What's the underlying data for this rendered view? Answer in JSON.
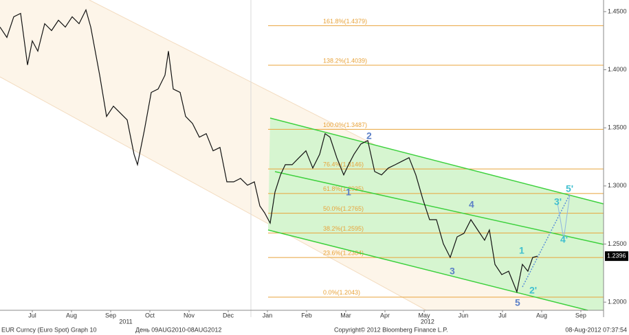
{
  "chart_data": {
    "type": "line",
    "x": [
      5.675,
      5.85,
      6.026,
      6.201,
      6.377,
      6.5,
      6.64,
      6.815,
      6.991,
      7.166,
      7.342,
      7.517,
      7.693,
      7.868,
      7.991,
      8.219,
      8.394,
      8.57,
      8.745,
      8.921,
      9.096,
      9.184,
      9.359,
      9.535,
      9.71,
      9.886,
      9.973,
      10.096,
      10.272,
      10.412,
      10.587,
      10.763,
      10.938,
      11.114,
      11.289,
      11.465,
      11.64,
      11.815,
      11.991,
      12.166,
      12.307,
      12.429,
      12.57,
      12.693,
      12.833,
      12.956,
      13.131,
      13.307,
      13.482,
      13.658,
      13.833,
      13.973,
      14.096,
      14.271,
      14.447,
      14.57,
      14.71,
      14.886,
      15.061,
      15.237,
      15.412,
      15.587,
      15.763,
      15.938,
      16.114,
      16.289,
      16.465,
      16.64,
      16.815,
      16.991,
      17.166,
      17.342,
      17.517,
      17.693,
      17.868,
      18.043,
      18.166,
      18.307,
      18.482,
      18.657,
      18.868,
      19.008,
      19.149,
      19.271,
      19.394
    ],
    "series": [
      {
        "name": "EUR Curncy",
        "color": "#111111",
        "values": [
          1.4367,
          1.4278,
          1.4456,
          1.4485,
          1.4041,
          1.4248,
          1.416,
          1.4396,
          1.4337,
          1.4426,
          1.4367,
          1.4456,
          1.4396,
          1.4515,
          1.4367,
          1.3953,
          1.3598,
          1.3686,
          1.3627,
          1.3568,
          1.3272,
          1.3183,
          1.3479,
          1.3805,
          1.3834,
          1.3953,
          1.416,
          1.3834,
          1.3805,
          1.3598,
          1.3538,
          1.342,
          1.345,
          1.3302,
          1.3331,
          1.3035,
          1.3035,
          1.3065,
          1.3006,
          1.3035,
          1.2828,
          1.2769,
          1.268,
          1.2947,
          1.3095,
          1.3183,
          1.3183,
          1.3243,
          1.3302,
          1.3154,
          1.3272,
          1.345,
          1.342,
          1.3243,
          1.3095,
          1.3183,
          1.3272,
          1.3361,
          1.339,
          1.3124,
          1.3095,
          1.3154,
          1.3183,
          1.3213,
          1.3243,
          1.3095,
          1.2888,
          1.271,
          1.271,
          1.2503,
          1.2385,
          1.2562,
          1.2592,
          1.271,
          1.2621,
          1.2533,
          1.2621,
          1.2325,
          1.2237,
          1.2266,
          1.2089,
          1.2325,
          1.2266,
          1.2385,
          1.2396
        ]
      }
    ],
    "xlim": [
      5.675,
      21.08
    ],
    "xticks": [
      {
        "value": 6.5,
        "label": "Jul"
      },
      {
        "value": 7.5,
        "label": "Aug"
      },
      {
        "value": 8.5,
        "label": "Sep"
      },
      {
        "value": 9.5,
        "label": "Oct"
      },
      {
        "value": 10.5,
        "label": "Nov"
      },
      {
        "value": 11.5,
        "label": "Dec"
      },
      {
        "value": 12.5,
        "label": "Jan"
      },
      {
        "value": 13.5,
        "label": "Feb"
      },
      {
        "value": 14.5,
        "label": "Mar"
      },
      {
        "value": 15.5,
        "label": "Apr"
      },
      {
        "value": 16.5,
        "label": "May"
      },
      {
        "value": 17.5,
        "label": "Jun"
      },
      {
        "value": 18.5,
        "label": "Jul"
      },
      {
        "value": 19.5,
        "label": "Aug"
      },
      {
        "value": 20.5,
        "label": "Sep"
      }
    ],
    "year_labels": [
      {
        "value": 8.886,
        "label": "2011"
      },
      {
        "value": 16.587,
        "label": "2012"
      }
    ],
    "ylim": [
      1.193,
      1.46
    ],
    "yticks": [
      {
        "value": 1.2,
        "label": "1.2000"
      },
      {
        "value": 1.25,
        "label": "1.2500"
      },
      {
        "value": 1.3,
        "label": "1.3000"
      },
      {
        "value": 1.35,
        "label": "1.3500"
      },
      {
        "value": 1.4,
        "label": "1.4000"
      },
      {
        "value": 1.45,
        "label": "1.4500"
      }
    ],
    "grid": false,
    "last_price": 1.2396,
    "levels_color": "#e8a33a",
    "levels": [
      {
        "value": 1.4379,
        "label": "161.8%(1.4379)"
      },
      {
        "value": 1.4039,
        "label": "138.2%(1.4039)"
      },
      {
        "value": 1.3487,
        "label": "100.0%(1.3487)"
      },
      {
        "value": 1.3146,
        "label": "76.4%(1.3146)"
      },
      {
        "value": 1.2935,
        "label": "61.8%(1.2935)"
      },
      {
        "value": 1.2765,
        "label": "50.0%(1.2765)"
      },
      {
        "value": 1.2595,
        "label": "38.2%(1.2595)"
      },
      {
        "value": 1.2384,
        "label": "23.6%(1.2384)"
      },
      {
        "value": 1.2043,
        "label": "0.0%(1.2043)"
      }
    ],
    "annotations": [
      "1",
      "2",
      "3",
      "4",
      "5",
      "1",
      "2'",
      "3'",
      "4'",
      "5'"
    ],
    "footer": [
      "EUR Curncy (Euro Spot) Graph 10",
      "День 09AUG2010-08AUG2012",
      "Copyright© 2012 Bloomberg Finance L.P.",
      "08-Aug-2012 07:37:54"
    ]
  }
}
